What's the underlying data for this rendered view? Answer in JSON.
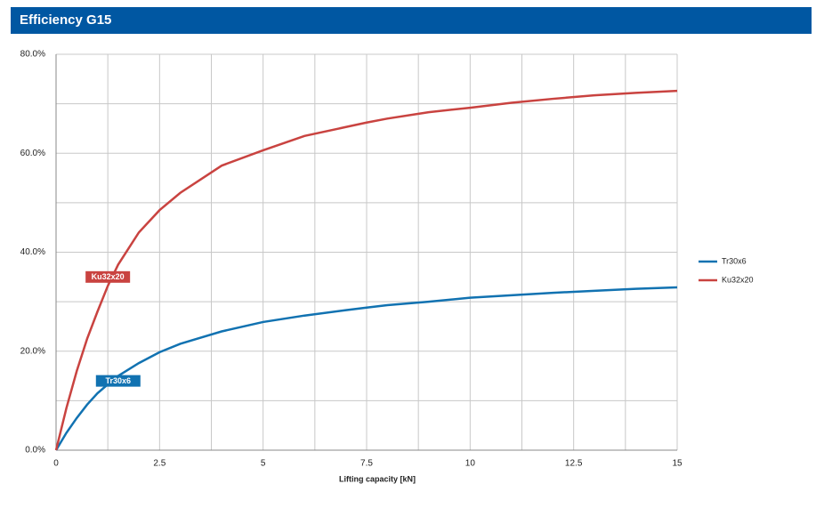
{
  "chart_data": {
    "type": "line",
    "title": "Efficiency G15",
    "x_label": "Lifting capacity [kN]",
    "x": [
      0,
      0.25,
      0.5,
      0.75,
      1,
      1.25,
      1.5,
      2,
      2.5,
      3,
      4,
      5,
      6,
      7,
      7.5,
      8,
      9,
      10,
      11,
      12,
      13,
      14,
      15
    ],
    "series": [
      {
        "name": "Tr30x6",
        "color": "#1172b1",
        "values": [
          0,
          3.5,
          6.5,
          9.2,
          11.5,
          13.3,
          15,
          17.6,
          19.8,
          21.5,
          24,
          25.9,
          27.2,
          28.3,
          28.8,
          29.3,
          30,
          30.8,
          31.3,
          31.8,
          32.2,
          32.6,
          32.9
        ]
      },
      {
        "name": "Ku32x20",
        "color": "#c94340",
        "values": [
          0,
          8.5,
          16,
          22.5,
          28,
          33.2,
          37.5,
          44,
          48.5,
          52,
          57.5,
          60.6,
          63.5,
          65.3,
          66.2,
          67,
          68.3,
          69.2,
          70.2,
          71,
          71.7,
          72.2,
          72.6
        ]
      }
    ],
    "xlim": [
      0,
      15
    ],
    "xticks": [
      0,
      2.5,
      5,
      7.5,
      10,
      12.5,
      15
    ],
    "x_minor_ticks": [
      1.25,
      3.75,
      6.25,
      8.75,
      11.25,
      13.75
    ],
    "ylim": [
      0,
      80
    ],
    "yticks": [
      {
        "value": 0,
        "label": "0.0%"
      },
      {
        "value": 20,
        "label": "20.0%"
      },
      {
        "value": 40,
        "label": "40.0%"
      },
      {
        "value": 60,
        "label": "60.0%"
      },
      {
        "value": 80,
        "label": "80.0%"
      }
    ],
    "y_minor_ticks": [
      10,
      30,
      50,
      70
    ],
    "grid": true,
    "legend": "right",
    "annotations": [
      {
        "series": 1,
        "x": 1.25,
        "y": 35
      },
      {
        "series": 0,
        "x": 1.5,
        "y": 14
      }
    ]
  }
}
